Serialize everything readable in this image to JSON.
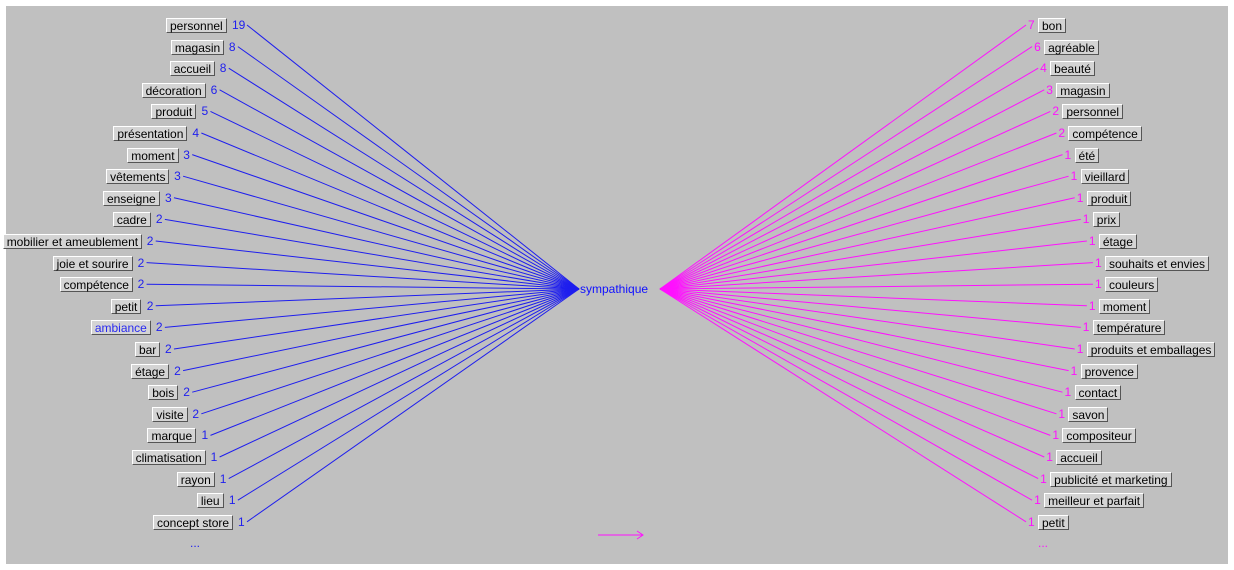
{
  "center_word": "sympathique",
  "colors": {
    "left": "#1e1eee",
    "right": "#ff10ff",
    "background": "#c0c0c0"
  },
  "left_items": [
    {
      "label": "personnel",
      "count": "19"
    },
    {
      "label": "magasin",
      "count": "8"
    },
    {
      "label": "accueil",
      "count": "8"
    },
    {
      "label": "décoration",
      "count": "6"
    },
    {
      "label": "produit",
      "count": "5"
    },
    {
      "label": "présentation",
      "count": "4"
    },
    {
      "label": "moment",
      "count": "3"
    },
    {
      "label": "vêtements",
      "count": "3"
    },
    {
      "label": "enseigne",
      "count": "3"
    },
    {
      "label": "cadre",
      "count": "2"
    },
    {
      "label": "mobilier et ameublement",
      "count": "2"
    },
    {
      "label": "joie et sourire",
      "count": "2"
    },
    {
      "label": "compétence",
      "count": "2"
    },
    {
      "label": "petit",
      "count": "2"
    },
    {
      "label": "ambiance",
      "count": "2",
      "highlighted": true
    },
    {
      "label": "bar",
      "count": "2"
    },
    {
      "label": "étage",
      "count": "2"
    },
    {
      "label": "bois",
      "count": "2"
    },
    {
      "label": "visite",
      "count": "2"
    },
    {
      "label": "marque",
      "count": "1"
    },
    {
      "label": "climatisation",
      "count": "1"
    },
    {
      "label": "rayon",
      "count": "1"
    },
    {
      "label": "lieu",
      "count": "1"
    },
    {
      "label": "concept store",
      "count": "1"
    }
  ],
  "left_more": "...",
  "right_items": [
    {
      "label": "bon",
      "count": "7"
    },
    {
      "label": "agréable",
      "count": "6"
    },
    {
      "label": "beauté",
      "count": "4"
    },
    {
      "label": "magasin",
      "count": "3"
    },
    {
      "label": "personnel",
      "count": "2"
    },
    {
      "label": "compétence",
      "count": "2"
    },
    {
      "label": "été",
      "count": "1"
    },
    {
      "label": "vieillard",
      "count": "1"
    },
    {
      "label": "produit",
      "count": "1"
    },
    {
      "label": "prix",
      "count": "1"
    },
    {
      "label": "étage",
      "count": "1"
    },
    {
      "label": "souhaits et envies",
      "count": "1"
    },
    {
      "label": "couleurs",
      "count": "1"
    },
    {
      "label": "moment",
      "count": "1"
    },
    {
      "label": "température",
      "count": "1"
    },
    {
      "label": "produits et emballages",
      "count": "1"
    },
    {
      "label": "provence",
      "count": "1"
    },
    {
      "label": "contact",
      "count": "1"
    },
    {
      "label": "savon",
      "count": "1"
    },
    {
      "label": "compositeur",
      "count": "1"
    },
    {
      "label": "accueil",
      "count": "1"
    },
    {
      "label": "publicité et marketing",
      "count": "1"
    },
    {
      "label": "meilleur et parfait",
      "count": "1"
    },
    {
      "label": "petit",
      "count": "1"
    }
  ],
  "right_more": "...",
  "direction_arrow_icon": "right-arrow-icon"
}
